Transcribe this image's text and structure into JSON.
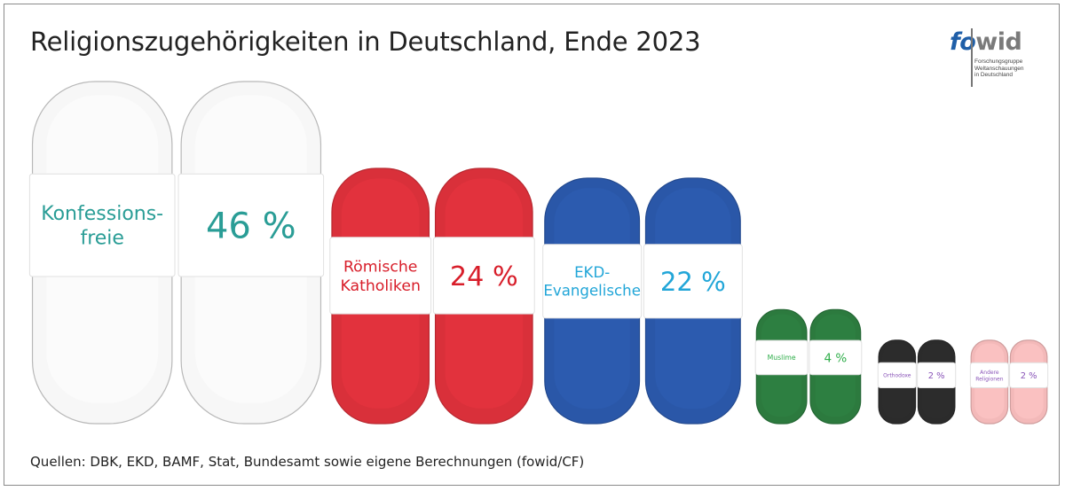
{
  "chart_data": {
    "type": "bar",
    "title": "Religionszugehörigkeiten in Deutschland, Ende 2023",
    "categories": [
      "Konfessions-freie",
      "Römische Katholiken",
      "EKD-Evangelische",
      "Muslime",
      "Orthodoxe",
      "Andere Religionen"
    ],
    "category_lines": [
      [
        "Konfessions-",
        "freie"
      ],
      [
        "Römische",
        "Katholiken"
      ],
      [
        "EKD-",
        "Evangelische"
      ],
      [
        "Muslime"
      ],
      [
        "Orthodoxe"
      ],
      [
        "Andere",
        "Religionen"
      ]
    ],
    "values": [
      46,
      24,
      22,
      4,
      2,
      2
    ],
    "value_labels": [
      "46 %",
      "24 %",
      "22 %",
      "4 %",
      "2 %",
      "2 %"
    ],
    "series_colors": [
      "#f7f7f7",
      "#d9303a",
      "#2a57a8",
      "#2c7a3e",
      "#2b2b2b",
      "#f3b9b9"
    ],
    "label_colors": [
      "#2a9d96",
      "#d81e2a",
      "#22a6d8",
      "#2fae4a",
      "#8a55b8",
      "#8a55b8"
    ],
    "source": "Quellen: DBK, EKD, BAMF, Stat, Bundesamt sowie eigene Berechnungen (fowid/CF)"
  },
  "logo": {
    "fo": "fo",
    "wid": "wid",
    "line1": "Forschungsgruppe",
    "line2": "Weltanschauungen",
    "line3": "in Deutschland"
  }
}
